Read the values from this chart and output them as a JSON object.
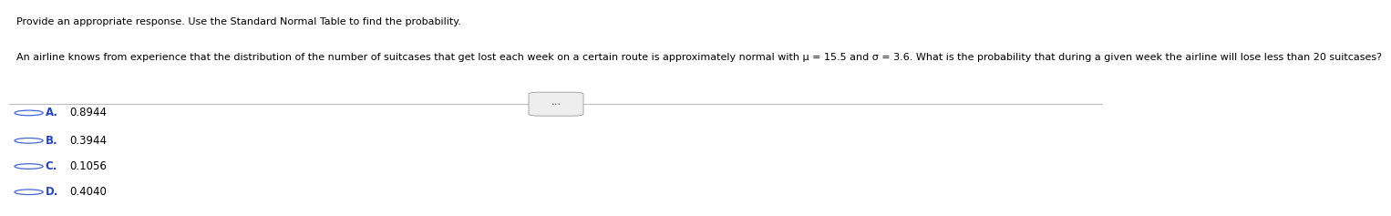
{
  "title_line1": "Provide an appropriate response. Use the Standard Normal Table to find the probability.",
  "question": "An airline knows from experience that the distribution of the number of suitcases that get lost each week on a certain route is approximately normal with μ = 15.5 and σ = 3.6. What is the probability that during a given week the airline will lose less than 20 suitcases?",
  "options": [
    {
      "letter": "A.",
      "text": "0.8944"
    },
    {
      "letter": "B.",
      "text": "0.3944"
    },
    {
      "letter": "C.",
      "text": "0.1056"
    },
    {
      "letter": "D.",
      "text": "0.4040"
    }
  ],
  "bg_color": "#ffffff",
  "text_color": "#000000",
  "option_letter_color": "#2244cc",
  "title_fontsize": 8.0,
  "question_fontsize": 8.0,
  "option_fontsize": 8.5,
  "divider_color": "#bbbbbb",
  "circle_color": "#4466dd"
}
